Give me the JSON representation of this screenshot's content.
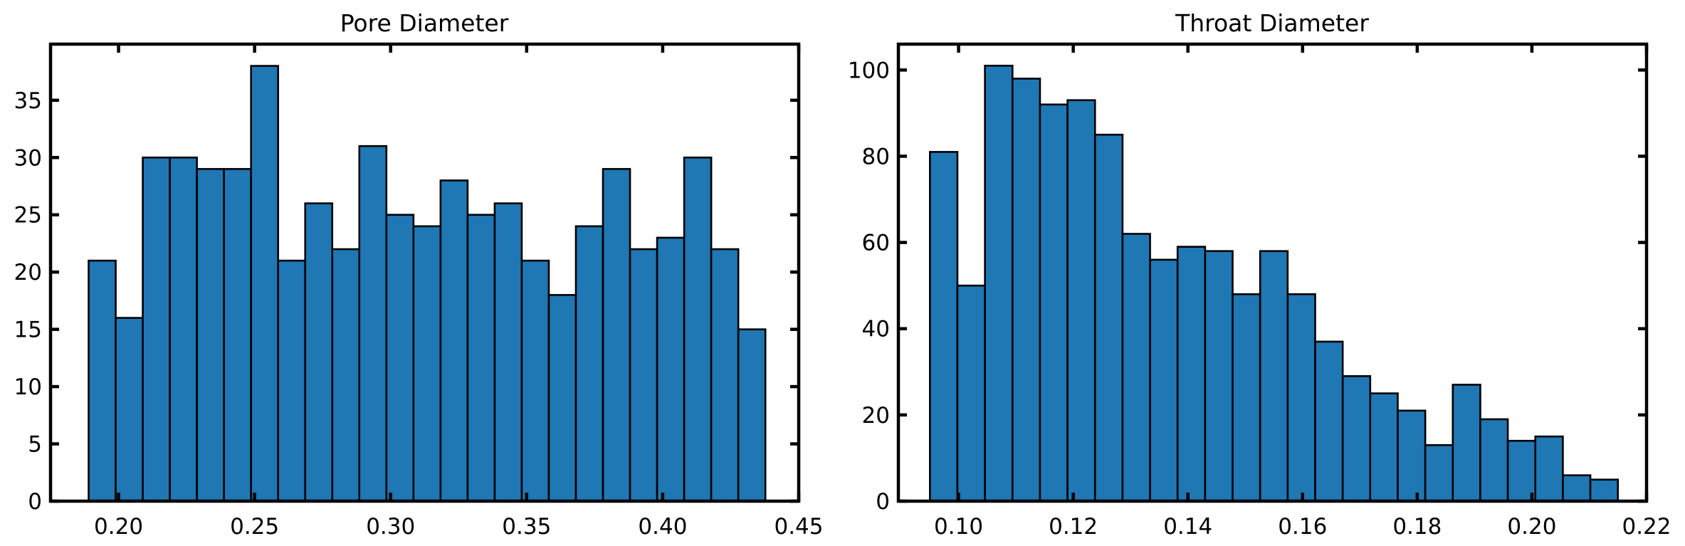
{
  "chart_data": [
    {
      "type": "bar",
      "title": "Pore Diameter",
      "xlabel": "",
      "ylabel": "",
      "bin_width": 0.00995,
      "bin_edges_start": 0.189,
      "counts": [
        21,
        16,
        30,
        30,
        29,
        29,
        38,
        21,
        26,
        22,
        31,
        25,
        24,
        28,
        25,
        26,
        21,
        18,
        24,
        29,
        22,
        23,
        30,
        22,
        15
      ],
      "xlim": [
        0.175,
        0.45
      ],
      "ylim": [
        0,
        39.9
      ],
      "xticks": [
        0.2,
        0.25,
        0.3,
        0.35,
        0.4,
        0.45
      ],
      "xtick_labels": [
        "0.20",
        "0.25",
        "0.30",
        "0.35",
        "0.40",
        "0.45"
      ],
      "yticks": [
        0,
        5,
        10,
        15,
        20,
        25,
        30,
        35
      ],
      "ytick_labels": [
        "0",
        "5",
        "10",
        "15",
        "20",
        "25",
        "30",
        "35"
      ],
      "bar_color": "#1f77b4",
      "grid": false
    },
    {
      "type": "bar",
      "title": "Throat Diameter",
      "xlabel": "",
      "ylabel": "",
      "bin_width": 0.0048,
      "bin_edges_start": 0.095,
      "counts": [
        81,
        50,
        101,
        98,
        92,
        93,
        85,
        62,
        56,
        59,
        58,
        48,
        58,
        48,
        37,
        29,
        25,
        21,
        13,
        27,
        19,
        14,
        15,
        6,
        5
      ],
      "xlim": [
        0.0895,
        0.22
      ],
      "ylim": [
        0,
        106
      ],
      "xticks": [
        0.1,
        0.12,
        0.14,
        0.16,
        0.18,
        0.2,
        0.22
      ],
      "xtick_labels": [
        "0.10",
        "0.12",
        "0.14",
        "0.16",
        "0.18",
        "0.20",
        "0.22"
      ],
      "yticks": [
        0,
        20,
        40,
        60,
        80,
        100
      ],
      "ytick_labels": [
        "0",
        "20",
        "40",
        "60",
        "80",
        "100"
      ],
      "bar_color": "#1f77b4",
      "grid": false
    }
  ]
}
